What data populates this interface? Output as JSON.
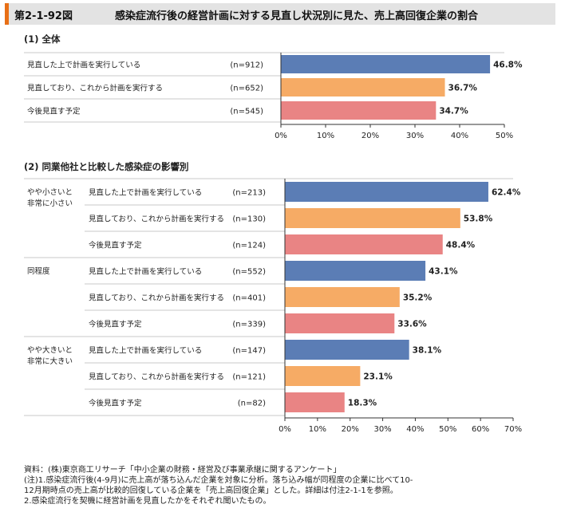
{
  "header": {
    "label": "第2-1-92図",
    "title": "感染症流行後の経営計画に対する見直し状況別に見た、売上高回復企業の割合"
  },
  "colors": {
    "blue": "#5b7db5",
    "orange": "#f6ab65",
    "red": "#e98484",
    "accent": "#e86f16"
  },
  "chart_data": [
    {
      "type": "bar",
      "title": "(1) 全体",
      "orientation": "horizontal",
      "xlim": [
        0,
        50
      ],
      "ticks": [
        "0%",
        "10%",
        "20%",
        "30%",
        "40%",
        "50%"
      ],
      "rows": [
        {
          "label": "見直した上で計画を実行している",
          "n": "(n=912)",
          "value": 46.8,
          "value_label": "46.8%",
          "color": "blue"
        },
        {
          "label": "見直しており、これから計画を実行する",
          "n": "(n=652)",
          "value": 36.7,
          "value_label": "36.7%",
          "color": "orange"
        },
        {
          "label": "今後見直す予定",
          "n": "(n=545)",
          "value": 34.7,
          "value_label": "34.7%",
          "color": "red"
        }
      ]
    },
    {
      "type": "bar",
      "title": "(2) 同業他社と比較した感染症の影響別",
      "orientation": "horizontal",
      "xlim": [
        0,
        70
      ],
      "ticks": [
        "0%",
        "10%",
        "20%",
        "30%",
        "40%",
        "50%",
        "60%",
        "70%"
      ],
      "groups": [
        {
          "name": "やや小さいと\n非常に小さい",
          "rows": [
            {
              "label": "見直した上で計画を実行している",
              "n": "(n=213)",
              "value": 62.4,
              "value_label": "62.4%",
              "color": "blue"
            },
            {
              "label": "見直しており、これから計画を実行する",
              "n": "(n=130)",
              "value": 53.8,
              "value_label": "53.8%",
              "color": "orange"
            },
            {
              "label": "今後見直す予定",
              "n": "(n=124)",
              "value": 48.4,
              "value_label": "48.4%",
              "color": "red"
            }
          ]
        },
        {
          "name": "同程度",
          "rows": [
            {
              "label": "見直した上で計画を実行している",
              "n": "(n=552)",
              "value": 43.1,
              "value_label": "43.1%",
              "color": "blue"
            },
            {
              "label": "見直しており、これから計画を実行する",
              "n": "(n=401)",
              "value": 35.2,
              "value_label": "35.2%",
              "color": "orange"
            },
            {
              "label": "今後見直す予定",
              "n": "(n=339)",
              "value": 33.6,
              "value_label": "33.6%",
              "color": "red"
            }
          ]
        },
        {
          "name": "やや大きいと\n非常に大きい",
          "rows": [
            {
              "label": "見直した上で計画を実行している",
              "n": "(n=147)",
              "value": 38.1,
              "value_label": "38.1%",
              "color": "blue"
            },
            {
              "label": "見直しており、これから計画を実行する",
              "n": "(n=121)",
              "value": 23.1,
              "value_label": "23.1%",
              "color": "orange"
            },
            {
              "label": "今後見直す予定",
              "n": "(n=82)",
              "value": 18.3,
              "value_label": "18.3%",
              "color": "red"
            }
          ]
        }
      ]
    }
  ],
  "notes": "資料：(株)東京商工リサーチ「中小企業の財務・経営及び事業承継に関するアンケート」\n(注)1.感染症流行後(4-9月)に売上高が落ち込んだ企業を対象に分析。落ち込み幅が同程度の企業に比べて10-\n12月期時点の売上高が比較的回復している企業を「売上高回復企業」とした。詳細は付注2-1-1を参照。\n2.感染症流行を契機に経営計画を見直したかをそれぞれ聞いたもの。"
}
